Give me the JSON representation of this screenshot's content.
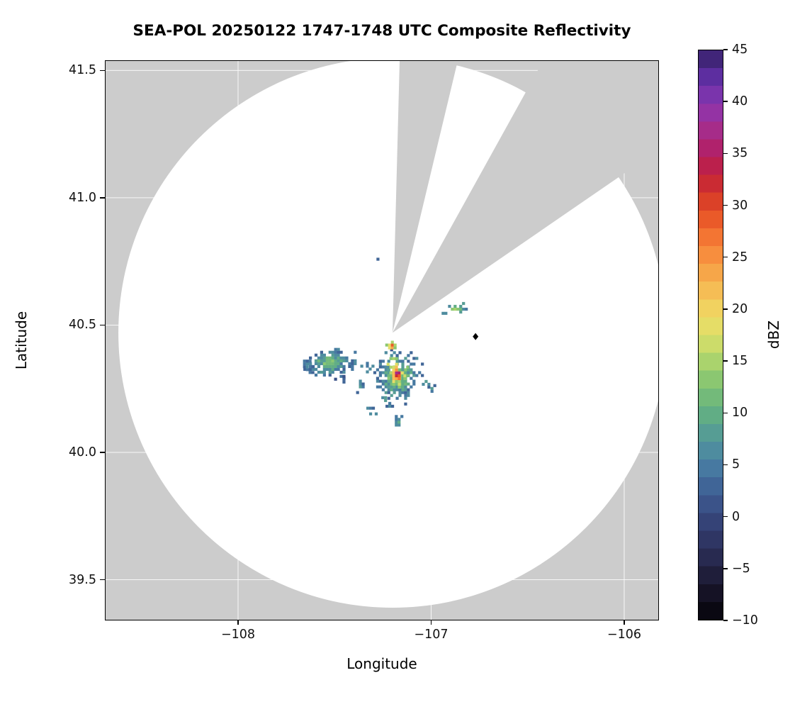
{
  "chart_data": {
    "type": "heatmap",
    "title": "SEA-POL 20250122 1747-1748 UTC Composite Reflectivity",
    "xlabel": "Longitude",
    "ylabel": "Latitude",
    "xlim": [
      -108.69,
      -105.82
    ],
    "ylim": [
      39.34,
      41.54
    ],
    "xticks": [
      -108,
      -107,
      -106
    ],
    "xtick_labels": [
      "−108",
      "−107",
      "−106"
    ],
    "yticks": [
      41.5,
      41.0,
      40.5,
      40.0,
      39.5
    ],
    "ytick_labels": [
      "41.5",
      "41.0",
      "40.5",
      "40.0",
      "39.5"
    ],
    "grid": true,
    "background_outside_scan": "#cccccc",
    "scan_area_color": "#ffffff",
    "colorbar": {
      "label": "dBZ",
      "min": -10,
      "max": 45,
      "n_bands": 32,
      "ticks": [
        45,
        40,
        35,
        30,
        25,
        20,
        15,
        10,
        5,
        0,
        -5,
        -10
      ],
      "tick_labels": [
        "45",
        "40",
        "35",
        "30",
        "25",
        "20",
        "15",
        "10",
        "5",
        "0",
        "−5",
        "−10"
      ],
      "stops": [
        [
          -10,
          "#050308"
        ],
        [
          -7,
          "#18152a"
        ],
        [
          -4,
          "#282a50"
        ],
        [
          -1,
          "#343f72"
        ],
        [
          2,
          "#3d5a92"
        ],
        [
          5,
          "#487ea3"
        ],
        [
          7,
          "#51939d"
        ],
        [
          9,
          "#5aa78b"
        ],
        [
          11,
          "#6cb67c"
        ],
        [
          13,
          "#87c572"
        ],
        [
          15,
          "#abd46d"
        ],
        [
          17,
          "#d3de69"
        ],
        [
          19,
          "#eedd66"
        ],
        [
          21,
          "#f4c85b"
        ],
        [
          23,
          "#f6ad4d"
        ],
        [
          25,
          "#f7913f"
        ],
        [
          27,
          "#f37433"
        ],
        [
          29,
          "#e85527"
        ],
        [
          31,
          "#d63828"
        ],
        [
          33,
          "#c1203c"
        ],
        [
          35,
          "#b31f62"
        ],
        [
          37,
          "#a92b85"
        ],
        [
          39,
          "#9433a4"
        ],
        [
          41,
          "#7634ad"
        ],
        [
          43,
          "#532c9b"
        ],
        [
          45,
          "#33205f"
        ]
      ]
    },
    "radar": {
      "center_lon": -107.2,
      "center_lat": 40.47,
      "range_radius_lon_deg": 1.42,
      "range_radius_lat_deg": 1.08,
      "blocked_sectors_deg": [
        {
          "from": 1.5,
          "to": 13.5
        },
        {
          "from": 29.0,
          "to": 55.5
        }
      ]
    },
    "marker": {
      "lon": -106.77,
      "lat": 40.455,
      "shape": "diamond",
      "color": "#000000"
    },
    "echo_cell_deg": {
      "dlon": 0.0145,
      "dlat": 0.0112
    },
    "echo_clusters": [
      {
        "lon": -107.525,
        "lat": 40.355,
        "rx": 0.115,
        "ry": 0.05,
        "core": 14,
        "edge": 4,
        "density": 0.95,
        "power": 1.3,
        "seed": 11
      },
      {
        "lon": -107.635,
        "lat": 40.345,
        "rx": 0.04,
        "ry": 0.025,
        "core": 8,
        "edge": 3,
        "density": 0.55,
        "power": 1.2,
        "seed": 12
      },
      {
        "lon": -107.46,
        "lat": 40.285,
        "rx": 0.028,
        "ry": 0.016,
        "core": 7,
        "edge": 3,
        "density": 0.5,
        "power": 1.2,
        "seed": 13
      },
      {
        "lon": -107.37,
        "lat": 40.26,
        "rx": 0.032,
        "ry": 0.02,
        "core": 8,
        "edge": 3,
        "density": 0.45,
        "power": 1.2,
        "seed": 14
      },
      {
        "lon": -107.33,
        "lat": 40.33,
        "rx": 0.035,
        "ry": 0.02,
        "core": 8,
        "edge": 4,
        "density": 0.5,
        "power": 1.2,
        "seed": 26
      },
      {
        "lon": -107.175,
        "lat": 40.3,
        "rx": 0.105,
        "ry": 0.088,
        "core": 16,
        "edge": 4,
        "density": 0.95,
        "power": 1.2,
        "seed": 15
      },
      {
        "lon": -107.175,
        "lat": 40.31,
        "rx": 0.05,
        "ry": 0.052,
        "core": 43,
        "edge": 14,
        "density": 1.0,
        "power": 2.2,
        "seed": 16
      },
      {
        "lon": -107.205,
        "lat": 40.418,
        "rx": 0.02,
        "ry": 0.024,
        "core": 41,
        "edge": 12,
        "density": 1.0,
        "power": 1.6,
        "seed": 17
      },
      {
        "lon": -107.02,
        "lat": 40.27,
        "rx": 0.028,
        "ry": 0.02,
        "core": 9,
        "edge": 4,
        "density": 0.6,
        "power": 1.2,
        "seed": 18
      },
      {
        "lon": -107.31,
        "lat": 40.165,
        "rx": 0.026,
        "ry": 0.02,
        "core": 10,
        "edge": 4,
        "density": 0.75,
        "power": 1.2,
        "seed": 19
      },
      {
        "lon": -107.17,
        "lat": 40.12,
        "rx": 0.02,
        "ry": 0.028,
        "core": 12,
        "edge": 5,
        "density": 0.8,
        "power": 1.2,
        "seed": 20
      },
      {
        "lon": -107.24,
        "lat": 40.21,
        "rx": 0.02,
        "ry": 0.014,
        "core": 8,
        "edge": 4,
        "density": 0.6,
        "power": 1.2,
        "seed": 21
      },
      {
        "lon": -106.99,
        "lat": 40.245,
        "rx": 0.016,
        "ry": 0.022,
        "core": 10,
        "edge": 5,
        "density": 0.7,
        "power": 1.2,
        "seed": 22
      },
      {
        "lon": -107.21,
        "lat": 40.185,
        "rx": 0.015,
        "ry": 0.012,
        "core": 7,
        "edge": 4,
        "density": 0.6,
        "power": 1.2,
        "seed": 27
      },
      {
        "lon": -106.865,
        "lat": 40.565,
        "rx": 0.055,
        "ry": 0.02,
        "core": 17,
        "edge": 6,
        "density": 0.85,
        "power": 1.3,
        "seed": 23
      },
      {
        "lon": -106.93,
        "lat": 40.55,
        "rx": 0.018,
        "ry": 0.012,
        "core": 8,
        "edge": 5,
        "density": 0.6,
        "power": 1.2,
        "seed": 24
      },
      {
        "lon": -107.28,
        "lat": 40.755,
        "rx": 0.008,
        "ry": 0.006,
        "core": 6,
        "edge": 4,
        "density": 0.6,
        "power": 1.2,
        "seed": 25
      }
    ]
  }
}
